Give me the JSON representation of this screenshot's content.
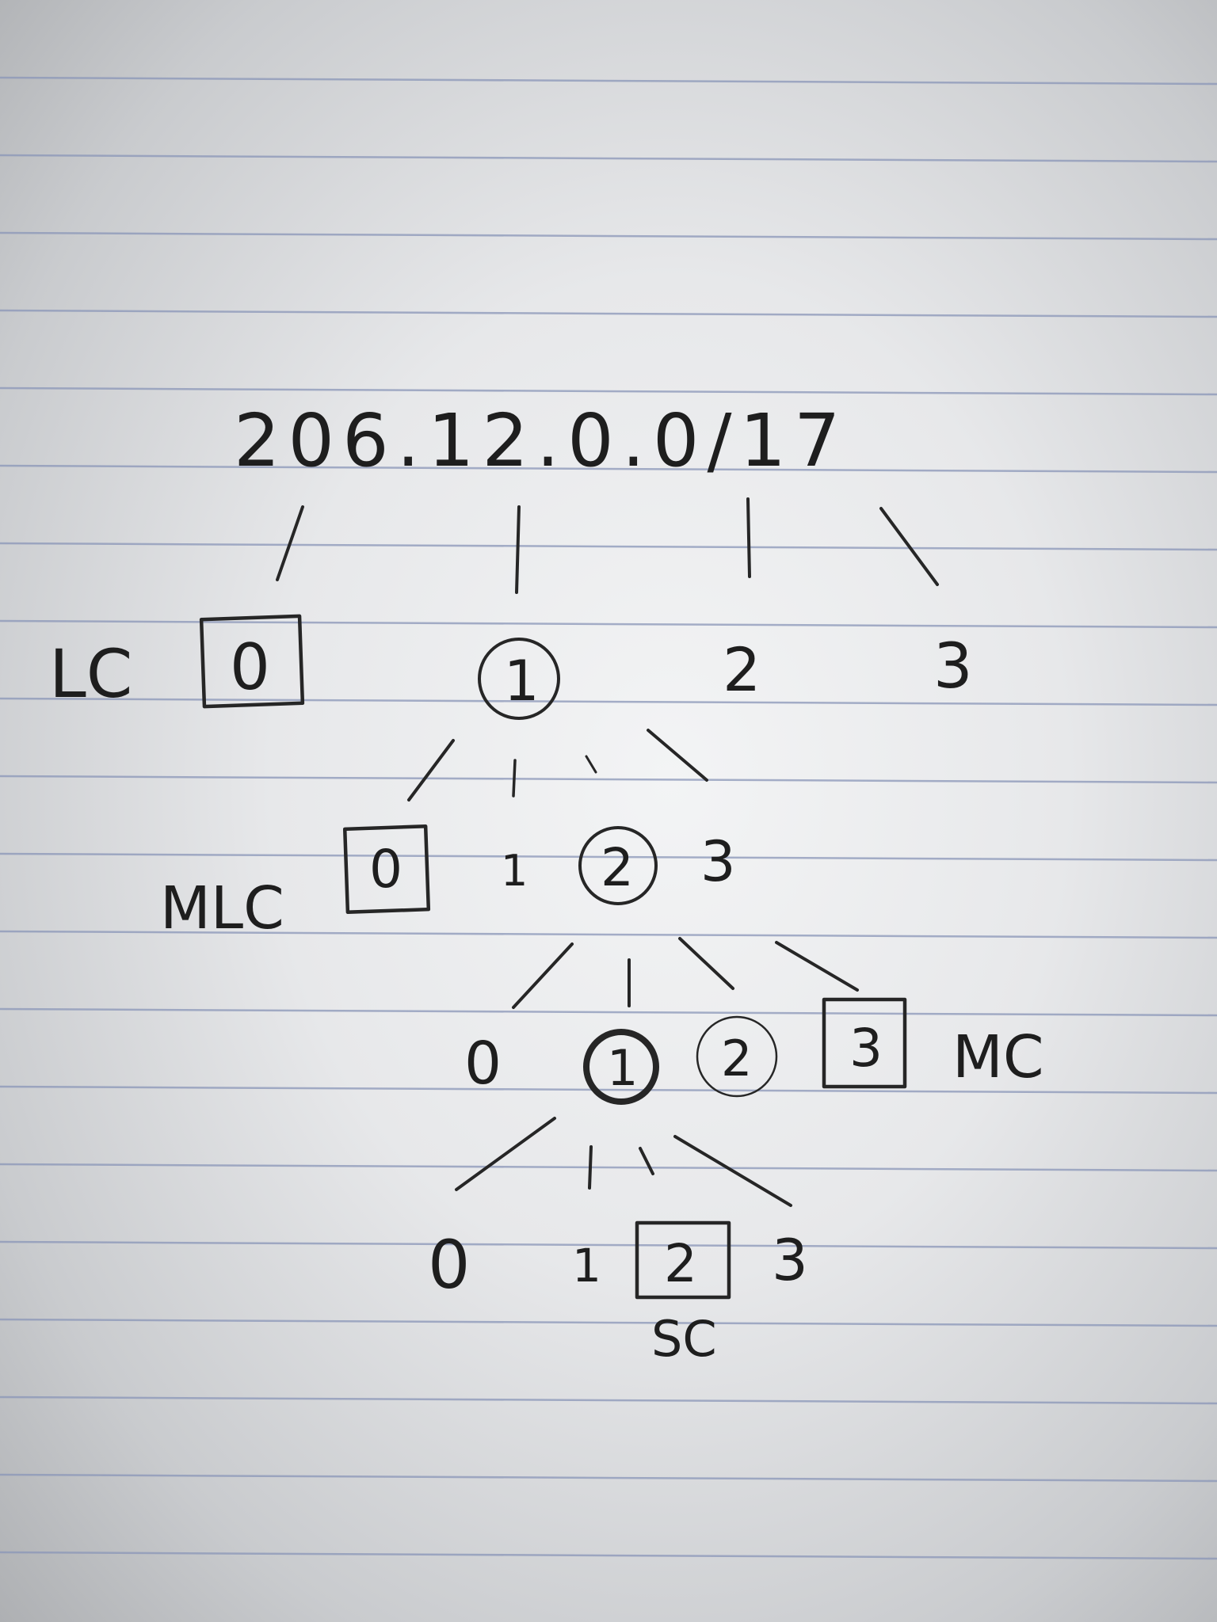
{
  "network": {
    "address": "206.12.0.0/17"
  },
  "colors": {
    "ink": "#1e1e1e",
    "paper": "#ececee",
    "rule": "#8a96b8"
  },
  "tree": {
    "level1": {
      "label": "LC",
      "nodes": [
        "0",
        "1",
        "2",
        "3"
      ]
    },
    "level2": {
      "label": "MLC",
      "nodes": [
        "0",
        "1",
        "2",
        "3"
      ]
    },
    "level3": {
      "label": "MC",
      "nodes": [
        "0",
        "1",
        "2",
        "3"
      ]
    },
    "level4": {
      "label": "SC",
      "nodes": [
        "0",
        "1",
        "2",
        "3"
      ]
    }
  }
}
